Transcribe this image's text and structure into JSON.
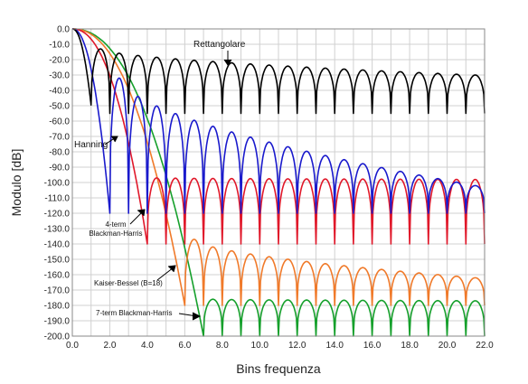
{
  "chart_data": {
    "type": "line",
    "xlabel": "Bins frequenza",
    "ylabel": "Modulo [dB]",
    "xlim": [
      0,
      22
    ],
    "ylim": [
      -200,
      0
    ],
    "x_ticks": [
      "0.0",
      "2.0",
      "4.0",
      "6.0",
      "8.0",
      "10.0",
      "12.0",
      "14.0",
      "16.0",
      "18.0",
      "20.0",
      "22.0"
    ],
    "y_ticks": [
      "0.0",
      "-10.0",
      "-20.0",
      "-30.0",
      "-40.0",
      "-50.0",
      "-60.0",
      "-70.0",
      "-80.0",
      "-90.0",
      "-100.0",
      "-110.0",
      "-120.0",
      "-130.0",
      "-140.0",
      "-150.0",
      "-160.0",
      "-170.0",
      "-180.0",
      "-190.0",
      "-200.0"
    ],
    "grid": true,
    "series": [
      {
        "name": "Rettangolare",
        "color": "#000000",
        "first_null": 1,
        "sidelobe_peak_first": -13,
        "sidelobe_peak_last": -30,
        "null_depth": -55
      },
      {
        "name": "Hanning",
        "color": "#1a1acc",
        "first_null": 2,
        "sidelobe_peak_first": -32,
        "sidelobe_peak_last": -102,
        "null_depth": -120
      },
      {
        "name": "4-term Blackman-Harris",
        "color": "#e0182a",
        "first_null": 4,
        "sidelobe_peak_first": -97,
        "sidelobe_peak_last": -98,
        "null_depth": -140
      },
      {
        "name": "Kaiser-Bessel (B=18)",
        "color": "#f07a2a",
        "first_null": 6,
        "sidelobe_peak_first": -137,
        "sidelobe_peak_last": -162,
        "null_depth": -180
      },
      {
        "name": "7-term Blackman-Harris",
        "color": "#16a02c",
        "first_null": 7,
        "sidelobe_peak_first": -176,
        "sidelobe_peak_last": -177,
        "null_depth": -200
      }
    ],
    "annotations": [
      {
        "text": "Rettangolare",
        "series": "Rettangolare"
      },
      {
        "text": "Hanning",
        "series": "Hanning"
      },
      {
        "text": "4-term",
        "series": "4-term Blackman-Harris"
      },
      {
        "text": "Blackman-Harris",
        "series": "4-term Blackman-Harris"
      },
      {
        "text": "Kaiser-Bessel (B=18)",
        "series": "Kaiser-Bessel (B=18)"
      },
      {
        "text": "7-term Blackman-Harris",
        "series": "7-term Blackman-Harris"
      }
    ]
  }
}
